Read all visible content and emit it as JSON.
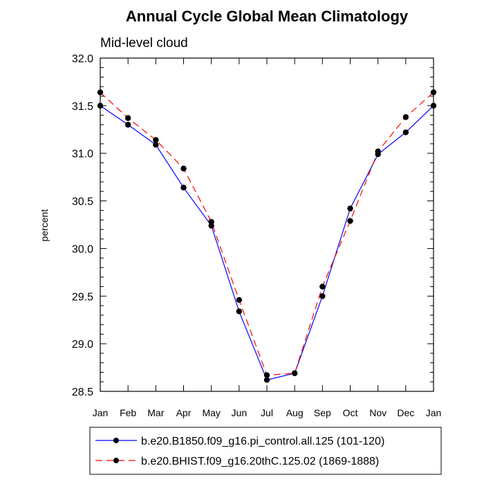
{
  "chart_data": {
    "type": "line",
    "title": "Annual Cycle Global Mean Climatology",
    "subtitle": "Mid-level cloud",
    "xlabel": "",
    "ylabel": "percent",
    "categories": [
      "Jan",
      "Feb",
      "Mar",
      "Apr",
      "May",
      "Jun",
      "Jul",
      "Aug",
      "Sep",
      "Oct",
      "Nov",
      "Dec",
      "Jan"
    ],
    "ylim": [
      28.5,
      32.0
    ],
    "yticks": [
      "28.5",
      "29.0",
      "29.5",
      "30.0",
      "30.5",
      "31.0",
      "31.5",
      "32.0"
    ],
    "legend_position": "bottom",
    "series": [
      {
        "name": "b.e20.B1850.f09_g16.pi_control.all.125 (101-120)",
        "color": "#0000ff",
        "dash": "solid",
        "values": [
          31.5,
          31.3,
          31.09,
          30.64,
          30.24,
          29.34,
          28.62,
          28.69,
          29.5,
          30.42,
          30.99,
          31.22,
          31.5
        ]
      },
      {
        "name": "b.e20.BHIST.f09_g16.20thC.125.02 (1869-1888)",
        "color": "#ff0000",
        "dash": "dashed",
        "values": [
          31.64,
          31.37,
          31.14,
          30.84,
          30.28,
          29.46,
          28.67,
          28.69,
          29.6,
          30.29,
          31.02,
          31.38,
          31.64
        ]
      }
    ]
  }
}
